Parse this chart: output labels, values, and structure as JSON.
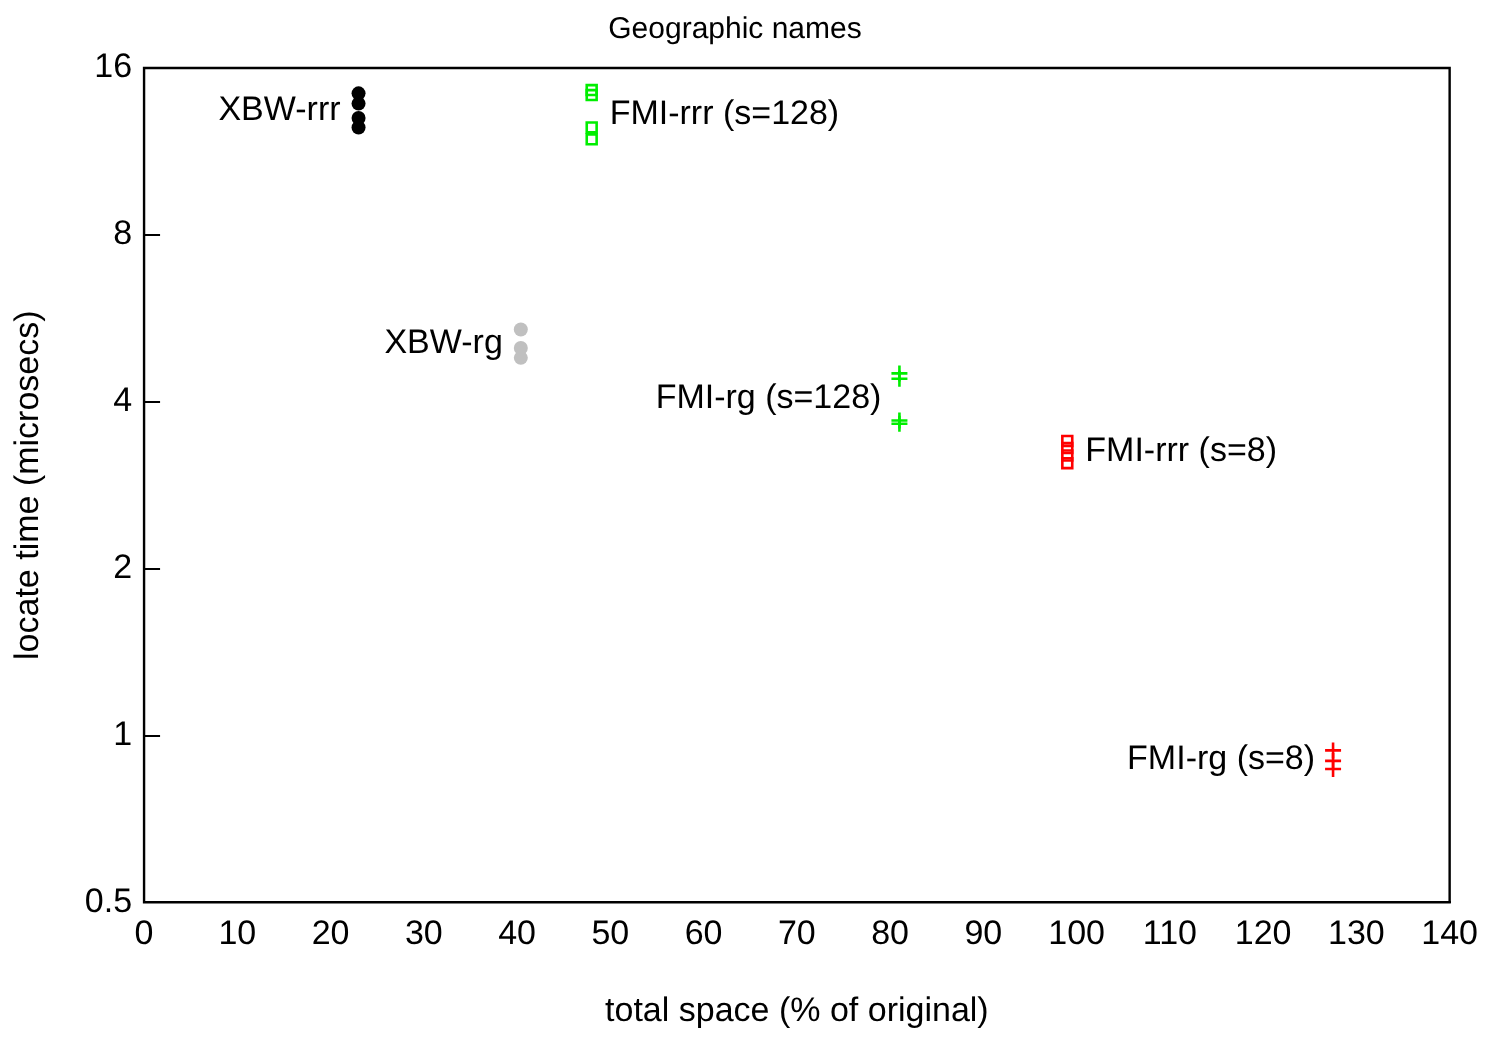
{
  "chart_data": {
    "type": "scatter",
    "title": "Geographic names",
    "xlabel": "total space (% of original)",
    "ylabel": "locate time (microsecs)",
    "xlim": [
      0,
      140
    ],
    "xticks": [
      0,
      10,
      20,
      30,
      40,
      50,
      60,
      70,
      80,
      90,
      100,
      110,
      120,
      130,
      140
    ],
    "ylim": [
      0.5,
      16
    ],
    "yticks": [
      0.5,
      1,
      2,
      4,
      8,
      16
    ],
    "log": "y",
    "grid": false,
    "legend": false,
    "series": [
      {
        "name": "XBW-rrr",
        "color": "#000000",
        "marker": "circle",
        "x": [
          23,
          23,
          23,
          23
        ],
        "values": [
          14.4,
          13.8,
          13.0,
          12.5
        ]
      },
      {
        "name": "FMI-rrr (s=128)",
        "color": "#00ee00",
        "marker": "square",
        "x": [
          48,
          48,
          48,
          48
        ],
        "values": [
          14.6,
          14.3,
          12.5,
          11.9
        ]
      },
      {
        "name": "XBW-rg",
        "color": "#c0c0c0",
        "marker": "circle",
        "x": [
          40.4,
          40.4,
          40.4
        ],
        "values": [
          5.4,
          5.0,
          4.8
        ]
      },
      {
        "name": "FMI-rg (s=128)",
        "color": "#00ee00",
        "marker": "cross",
        "x": [
          81,
          81,
          81,
          81
        ],
        "values": [
          4.5,
          4.4,
          3.7,
          3.65
        ]
      },
      {
        "name": "FMI-rrr (s=8)",
        "color": "#ff0000",
        "marker": "square",
        "x": [
          99,
          99,
          99,
          99
        ],
        "values": [
          3.4,
          3.3,
          3.2,
          3.1
        ]
      },
      {
        "name": "FMI-rg (s=8)",
        "color": "#ff0000",
        "marker": "cross",
        "x": [
          127.5,
          127.5,
          127.5
        ],
        "values": [
          0.94,
          0.9,
          0.87
        ]
      }
    ]
  }
}
